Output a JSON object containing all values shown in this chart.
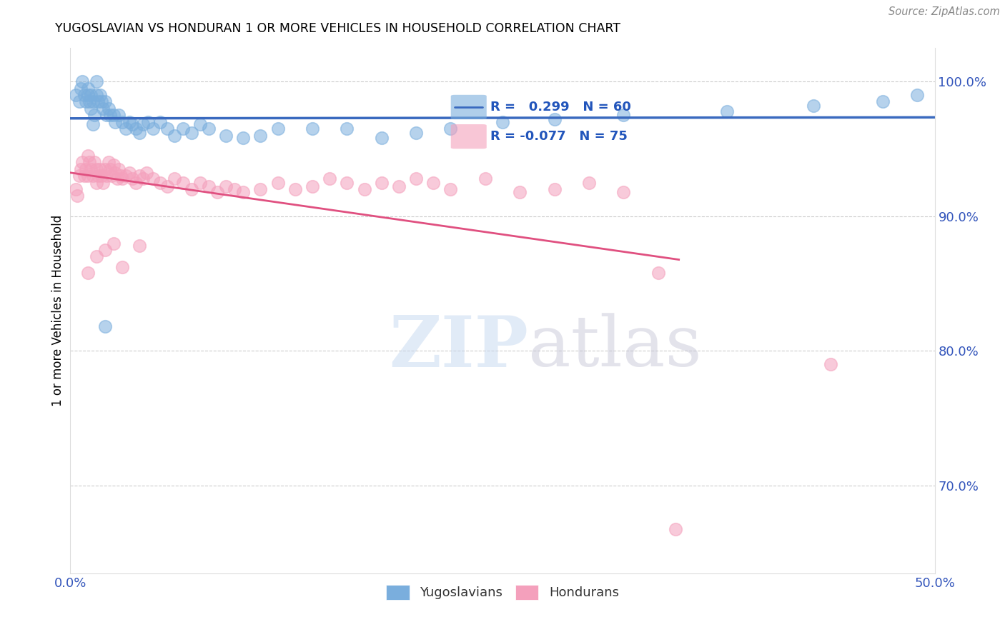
{
  "title": "YUGOSLAVIAN VS HONDURAN 1 OR MORE VEHICLES IN HOUSEHOLD CORRELATION CHART",
  "source": "Source: ZipAtlas.com",
  "ylabel": "1 or more Vehicles in Household",
  "xlim": [
    0.0,
    0.5
  ],
  "ylim": [
    0.635,
    1.025
  ],
  "xticks": [
    0.0,
    0.1,
    0.2,
    0.3,
    0.4,
    0.5
  ],
  "xticklabels": [
    "0.0%",
    "",
    "",
    "",
    "",
    "50.0%"
  ],
  "yticks_right": [
    0.7,
    0.8,
    0.9,
    1.0
  ],
  "yticklabels_right": [
    "70.0%",
    "80.0%",
    "90.0%",
    "100.0%"
  ],
  "blue_R": 0.299,
  "blue_N": 60,
  "pink_R": -0.077,
  "pink_N": 75,
  "blue_color": "#7aaedd",
  "pink_color": "#f4a0bc",
  "blue_line_color": "#3a6abf",
  "pink_line_color": "#e05080",
  "watermark_zip": "ZIP",
  "watermark_atlas": "atlas",
  "legend_label_blue": "Yugoslavians",
  "legend_label_pink": "Hondurans",
  "blue_scatter_x": [
    0.003,
    0.005,
    0.006,
    0.007,
    0.008,
    0.009,
    0.01,
    0.01,
    0.011,
    0.012,
    0.012,
    0.013,
    0.014,
    0.015,
    0.015,
    0.016,
    0.017,
    0.018,
    0.019,
    0.02,
    0.021,
    0.022,
    0.023,
    0.025,
    0.026,
    0.028,
    0.03,
    0.032,
    0.034,
    0.036,
    0.038,
    0.04,
    0.042,
    0.045,
    0.048,
    0.052,
    0.056,
    0.06,
    0.065,
    0.07,
    0.075,
    0.08,
    0.09,
    0.1,
    0.11,
    0.12,
    0.14,
    0.16,
    0.18,
    0.2,
    0.22,
    0.25,
    0.28,
    0.32,
    0.38,
    0.43,
    0.47,
    0.49,
    0.013,
    0.02
  ],
  "blue_scatter_y": [
    0.99,
    0.985,
    0.995,
    1.0,
    0.99,
    0.985,
    0.995,
    0.99,
    0.985,
    0.99,
    0.98,
    0.985,
    0.975,
    1.0,
    0.99,
    0.985,
    0.99,
    0.985,
    0.98,
    0.985,
    0.975,
    0.98,
    0.975,
    0.975,
    0.97,
    0.975,
    0.97,
    0.965,
    0.97,
    0.968,
    0.965,
    0.962,
    0.968,
    0.97,
    0.965,
    0.97,
    0.965,
    0.96,
    0.965,
    0.962,
    0.968,
    0.965,
    0.96,
    0.958,
    0.96,
    0.965,
    0.965,
    0.965,
    0.958,
    0.962,
    0.965,
    0.97,
    0.972,
    0.975,
    0.978,
    0.982,
    0.985,
    0.99,
    0.968,
    0.818
  ],
  "pink_scatter_x": [
    0.003,
    0.004,
    0.005,
    0.006,
    0.007,
    0.008,
    0.009,
    0.01,
    0.01,
    0.011,
    0.012,
    0.013,
    0.014,
    0.015,
    0.015,
    0.016,
    0.017,
    0.018,
    0.019,
    0.02,
    0.021,
    0.022,
    0.023,
    0.024,
    0.025,
    0.026,
    0.027,
    0.028,
    0.029,
    0.03,
    0.032,
    0.034,
    0.036,
    0.038,
    0.04,
    0.042,
    0.044,
    0.048,
    0.052,
    0.056,
    0.06,
    0.065,
    0.07,
    0.075,
    0.08,
    0.085,
    0.09,
    0.095,
    0.1,
    0.11,
    0.12,
    0.13,
    0.14,
    0.15,
    0.16,
    0.17,
    0.18,
    0.19,
    0.2,
    0.21,
    0.22,
    0.24,
    0.26,
    0.28,
    0.3,
    0.32,
    0.34,
    0.01,
    0.015,
    0.02,
    0.025,
    0.03,
    0.04,
    0.35,
    0.44
  ],
  "pink_scatter_y": [
    0.92,
    0.915,
    0.93,
    0.935,
    0.94,
    0.93,
    0.935,
    0.945,
    0.93,
    0.94,
    0.935,
    0.93,
    0.94,
    0.935,
    0.925,
    0.93,
    0.935,
    0.93,
    0.925,
    0.935,
    0.93,
    0.94,
    0.935,
    0.93,
    0.938,
    0.932,
    0.928,
    0.935,
    0.93,
    0.928,
    0.93,
    0.932,
    0.928,
    0.925,
    0.93,
    0.928,
    0.932,
    0.928,
    0.925,
    0.922,
    0.928,
    0.925,
    0.92,
    0.925,
    0.922,
    0.918,
    0.922,
    0.92,
    0.918,
    0.92,
    0.925,
    0.92,
    0.922,
    0.928,
    0.925,
    0.92,
    0.925,
    0.922,
    0.928,
    0.925,
    0.92,
    0.928,
    0.918,
    0.92,
    0.925,
    0.918,
    0.858,
    0.858,
    0.87,
    0.875,
    0.88,
    0.862,
    0.878,
    0.668,
    0.79
  ]
}
